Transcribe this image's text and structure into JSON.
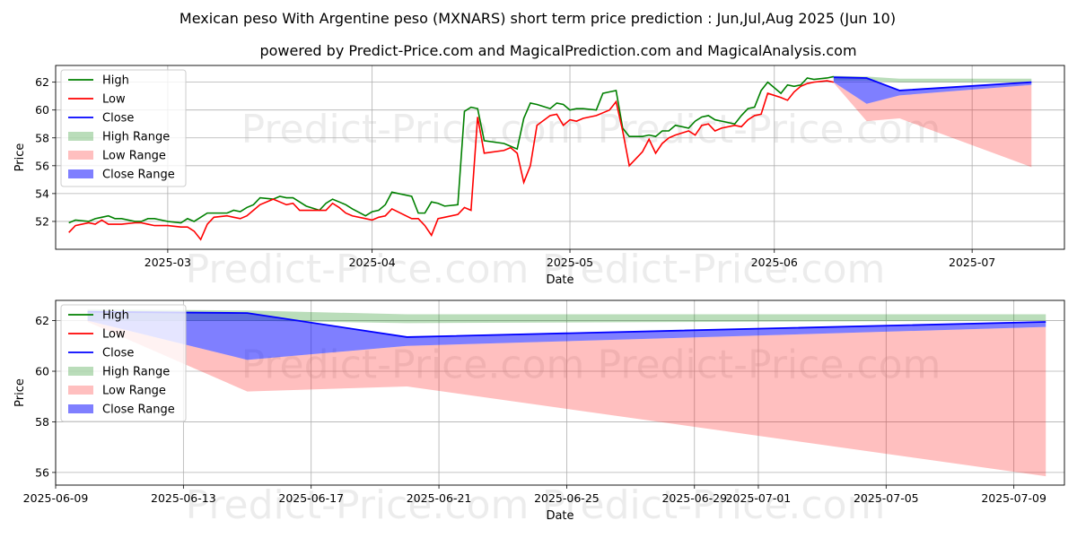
{
  "title": "Mexican peso With Argentine peso (MXNARS) short term price prediction : Jun,Jul,Aug 2025 (Jun 10)",
  "subtitle": "powered by Predict-Price.com and MagicalPrediction.com and MagicalAnalysis.com",
  "watermark": "Predict-Price.com",
  "colors": {
    "high": "#008000",
    "low": "#ff0000",
    "close": "#0000ff",
    "high_range": "#008000",
    "low_range": "#ff0000",
    "close_range": "#0000ff",
    "grid": "#b0b0b0"
  },
  "chart_data": [
    {
      "type": "line",
      "xlabel": "Date",
      "ylabel": "Price",
      "xlim": [
        "2025-02-12",
        "2025-07-15"
      ],
      "ylim": [
        50.0,
        63.2
      ],
      "grid": true,
      "legend_position": "top-left",
      "x_ticks": [
        "2025-03",
        "2025-04",
        "2025-05",
        "2025-06",
        "2025-07"
      ],
      "x_tick_dates": [
        "2025-03-01",
        "2025-04-01",
        "2025-05-01",
        "2025-06-01",
        "2025-07-01"
      ],
      "y_ticks": [
        52,
        54,
        56,
        58,
        60,
        62
      ],
      "legend": [
        "High",
        "Low",
        "Close",
        "High Range",
        "Low Range",
        "Close Range"
      ],
      "history": {
        "dates": [
          "2025-02-14",
          "2025-02-15",
          "2025-02-17",
          "2025-02-18",
          "2025-02-19",
          "2025-02-20",
          "2025-02-21",
          "2025-02-22",
          "2025-02-24",
          "2025-02-25",
          "2025-02-26",
          "2025-02-27",
          "2025-02-28",
          "2025-03-01",
          "2025-03-03",
          "2025-03-04",
          "2025-03-05",
          "2025-03-06",
          "2025-03-07",
          "2025-03-08",
          "2025-03-10",
          "2025-03-11",
          "2025-03-12",
          "2025-03-13",
          "2025-03-14",
          "2025-03-15",
          "2025-03-17",
          "2025-03-18",
          "2025-03-19",
          "2025-03-20",
          "2025-03-21",
          "2025-03-22",
          "2025-03-24",
          "2025-03-25",
          "2025-03-26",
          "2025-03-27",
          "2025-03-28",
          "2025-03-29",
          "2025-03-31",
          "2025-04-01",
          "2025-04-02",
          "2025-04-03",
          "2025-04-04",
          "2025-04-07",
          "2025-04-08",
          "2025-04-09",
          "2025-04-10",
          "2025-04-11",
          "2025-04-12",
          "2025-04-14",
          "2025-04-15",
          "2025-04-16",
          "2025-04-17",
          "2025-04-18",
          "2025-04-21",
          "2025-04-22",
          "2025-04-23",
          "2025-04-24",
          "2025-04-25",
          "2025-04-26",
          "2025-04-28",
          "2025-04-29",
          "2025-04-30",
          "2025-05-01",
          "2025-05-02",
          "2025-05-03",
          "2025-05-05",
          "2025-05-06",
          "2025-05-07",
          "2025-05-08",
          "2025-05-09",
          "2025-05-10",
          "2025-05-12",
          "2025-05-13",
          "2025-05-14",
          "2025-05-15",
          "2025-05-16",
          "2025-05-17",
          "2025-05-19",
          "2025-05-20",
          "2025-05-21",
          "2025-05-22",
          "2025-05-23",
          "2025-05-24",
          "2025-05-26",
          "2025-05-27",
          "2025-05-28",
          "2025-05-29",
          "2025-05-30",
          "2025-05-31",
          "2025-06-02",
          "2025-06-03",
          "2025-06-04",
          "2025-06-05",
          "2025-06-06",
          "2025-06-07",
          "2025-06-09",
          "2025-06-10"
        ],
        "high": [
          51.9,
          52.1,
          52.0,
          52.2,
          52.3,
          52.4,
          52.2,
          52.2,
          52.0,
          52.0,
          52.2,
          52.2,
          52.1,
          52.0,
          51.9,
          52.2,
          52.0,
          52.3,
          52.6,
          52.6,
          52.6,
          52.8,
          52.7,
          53.0,
          53.2,
          53.7,
          53.6,
          53.8,
          53.7,
          53.7,
          53.4,
          53.1,
          52.8,
          53.3,
          53.6,
          53.4,
          53.2,
          52.9,
          52.4,
          52.7,
          52.8,
          53.2,
          54.1,
          53.8,
          52.6,
          52.6,
          53.4,
          53.3,
          53.1,
          53.2,
          59.9,
          60.2,
          60.1,
          57.8,
          57.6,
          57.4,
          57.2,
          59.4,
          60.5,
          60.4,
          60.1,
          60.5,
          60.4,
          60.0,
          60.1,
          60.1,
          60.0,
          61.2,
          61.3,
          61.4,
          58.7,
          58.1,
          58.1,
          58.2,
          58.1,
          58.5,
          58.5,
          58.9,
          58.7,
          59.2,
          59.5,
          59.6,
          59.3,
          59.2,
          59.0,
          59.6,
          60.1,
          60.2,
          61.4,
          62.0,
          61.2,
          61.8,
          61.7,
          61.8,
          62.3,
          62.2,
          62.3,
          62.4
        ],
        "low": [
          51.2,
          51.7,
          51.9,
          51.8,
          52.1,
          51.8,
          51.8,
          51.8,
          51.9,
          51.9,
          51.8,
          51.7,
          51.7,
          51.7,
          51.6,
          51.6,
          51.3,
          50.7,
          51.8,
          52.3,
          52.4,
          52.3,
          52.2,
          52.4,
          52.8,
          53.2,
          53.6,
          53.4,
          53.2,
          53.3,
          52.8,
          52.8,
          52.8,
          52.8,
          53.3,
          53.0,
          52.6,
          52.4,
          52.2,
          52.1,
          52.3,
          52.4,
          52.9,
          52.2,
          52.2,
          51.7,
          51.0,
          52.2,
          52.3,
          52.5,
          53.0,
          52.8,
          59.5,
          56.9,
          57.1,
          57.3,
          56.9,
          54.8,
          56.0,
          58.9,
          59.6,
          59.7,
          58.9,
          59.3,
          59.2,
          59.4,
          59.6,
          59.8,
          60.0,
          60.6,
          58.5,
          56.0,
          57.0,
          57.9,
          56.9,
          57.6,
          58.0,
          58.2,
          58.5,
          58.2,
          58.9,
          59.0,
          58.5,
          58.7,
          58.9,
          58.8,
          59.3,
          59.6,
          59.7,
          61.2,
          60.9,
          60.7,
          61.3,
          61.7,
          61.9,
          62.0,
          62.1,
          62.0
        ],
        "close_point": {
          "date": "2025-06-10",
          "value": 62.3
        }
      },
      "forecast": {
        "dates": [
          "2025-06-10",
          "2025-06-15",
          "2025-06-20",
          "2025-07-10"
        ],
        "close": [
          62.35,
          62.3,
          61.4,
          62.0
        ],
        "high_range_upper": [
          62.45,
          62.4,
          62.25,
          62.25
        ],
        "high_range_lower": [
          62.1,
          62.1,
          62.0,
          62.0
        ],
        "close_range_upper": [
          62.35,
          62.3,
          61.4,
          62.0
        ],
        "close_range_lower": [
          62.0,
          60.45,
          61.05,
          61.8
        ],
        "low_range_upper": [
          62.0,
          60.45,
          61.05,
          61.8
        ],
        "low_range_lower": [
          61.95,
          59.2,
          59.4,
          55.9
        ]
      }
    },
    {
      "type": "line",
      "xlabel": "Date",
      "ylabel": "Price",
      "xlim": [
        "2025-06-09",
        "2025-07-10 14:00"
      ],
      "ylim": [
        55.5,
        62.8
      ],
      "grid": true,
      "legend_position": "top-left",
      "x_ticks": [
        "2025-06-09",
        "2025-06-13",
        "2025-06-17",
        "2025-06-21",
        "2025-06-25",
        "2025-06-29",
        "2025-07-01",
        "2025-07-05",
        "2025-07-09"
      ],
      "y_ticks": [
        56,
        58,
        60,
        62
      ],
      "legend": [
        "High",
        "Low",
        "Close",
        "High Range",
        "Low Range",
        "Close Range"
      ],
      "forecast": {
        "dates": [
          "2025-06-10",
          "2025-06-15",
          "2025-06-20",
          "2025-07-10"
        ],
        "close": [
          62.35,
          62.3,
          61.35,
          61.95
        ],
        "high_range_upper": [
          62.45,
          62.4,
          62.25,
          62.25
        ],
        "high_range_lower": [
          62.0,
          62.0,
          61.9,
          62.0
        ],
        "close_range_upper": [
          62.35,
          62.3,
          61.35,
          61.95
        ],
        "close_range_lower": [
          62.0,
          60.45,
          61.0,
          61.75
        ],
        "low_range_upper": [
          62.0,
          60.45,
          61.0,
          61.75
        ],
        "low_range_lower": [
          61.95,
          59.2,
          59.4,
          55.85
        ]
      }
    }
  ]
}
